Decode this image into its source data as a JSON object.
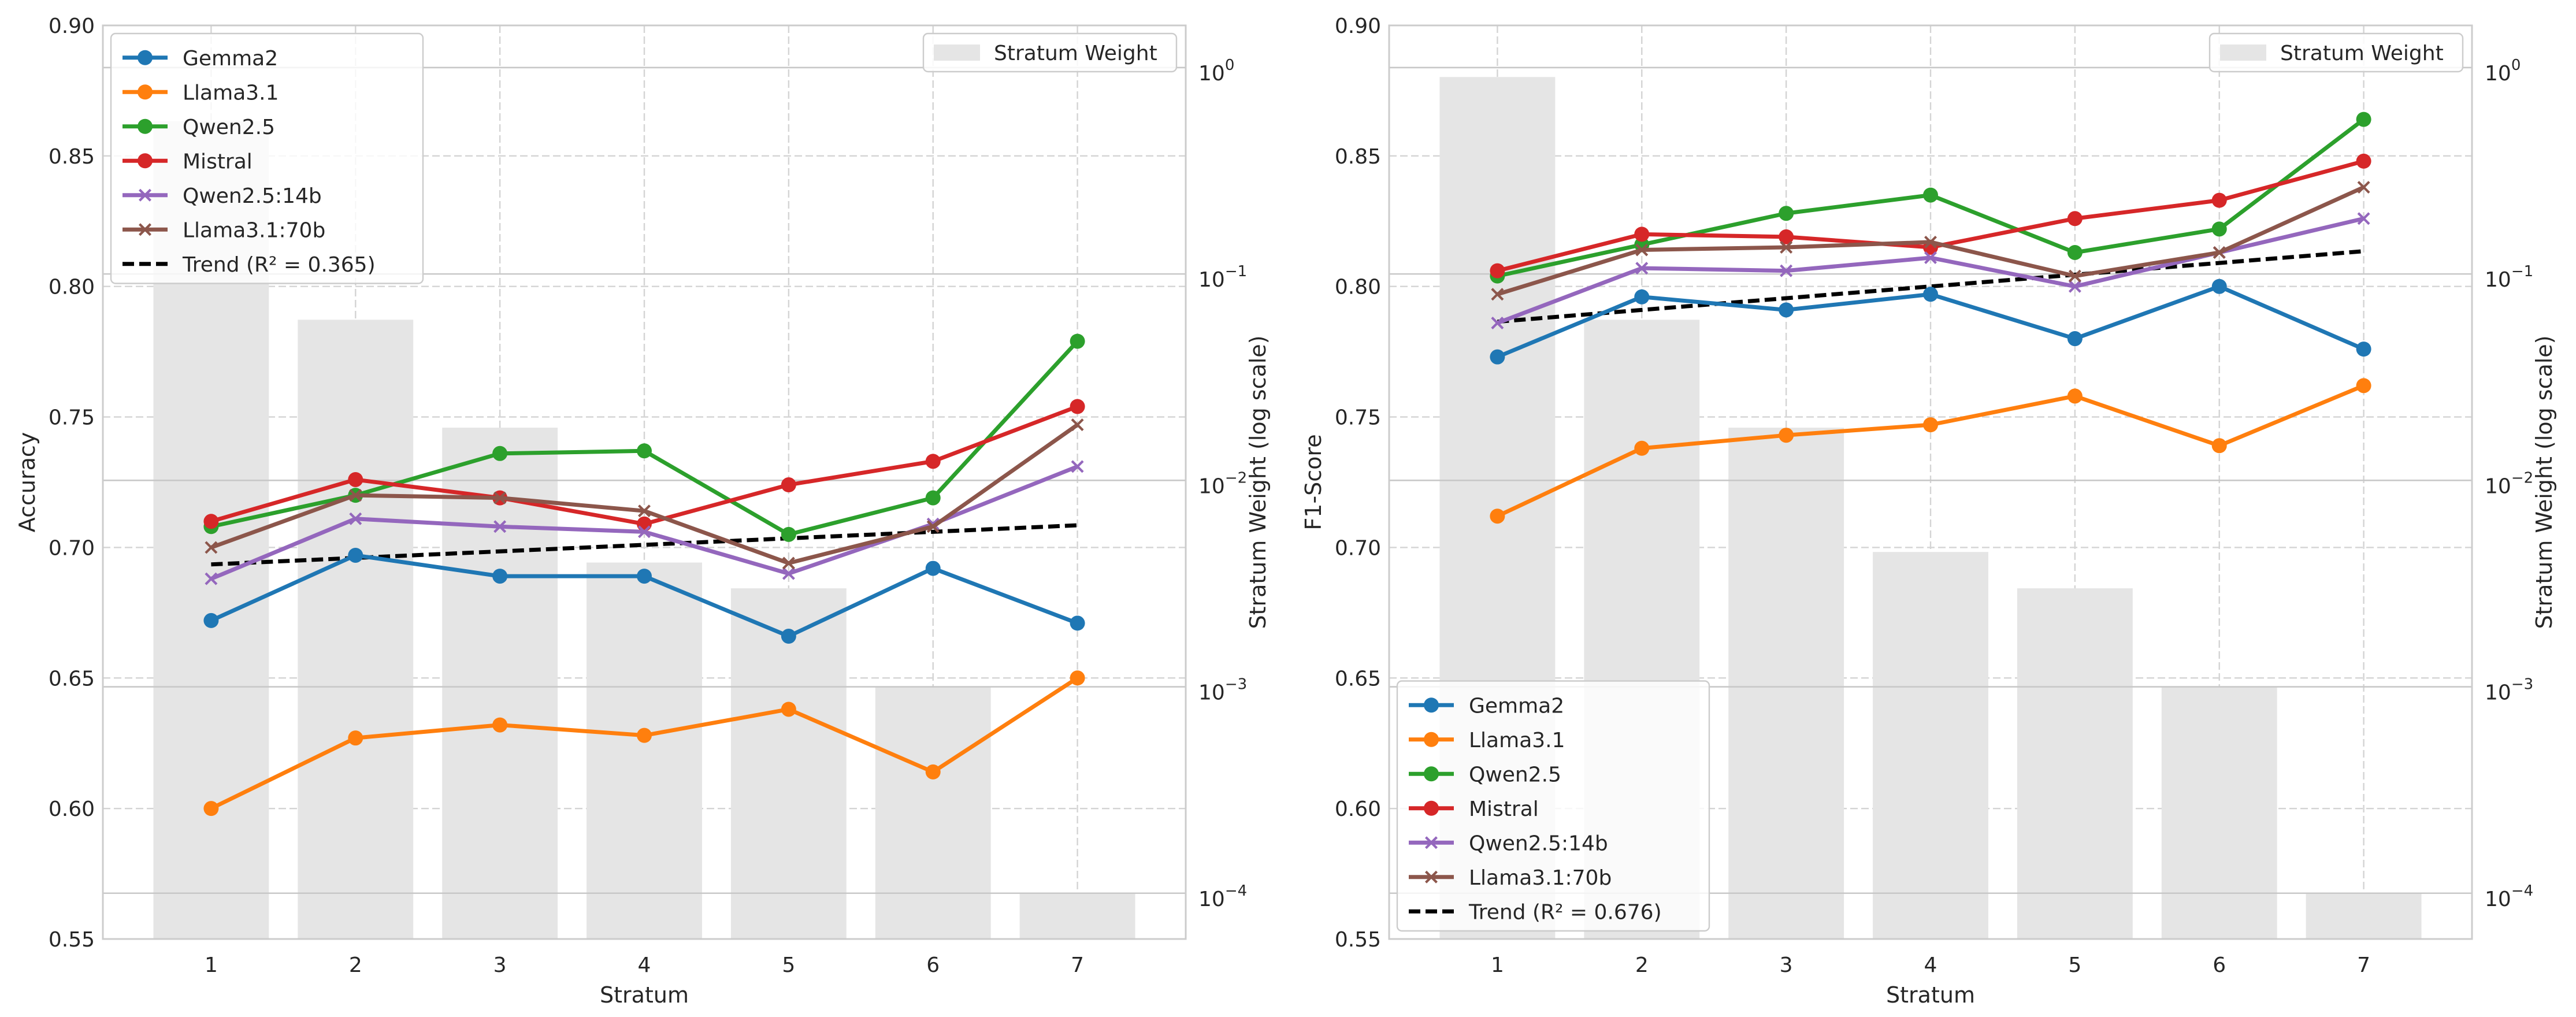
{
  "figure": {
    "panels": [
      {
        "ylabel": "Accuracy",
        "xlabel": "Stratum",
        "y2label": "Stratum Weight (log scale)",
        "bar_legend_label": "Stratum Weight",
        "legend_position": "upper-left",
        "yticks": [
          "0.55",
          "0.60",
          "0.65",
          "0.70",
          "0.75",
          "0.80",
          "0.85",
          "0.90"
        ],
        "xticks": [
          "1",
          "2",
          "3",
          "4",
          "5",
          "6",
          "7"
        ],
        "trend_label": "Trend (R² = 0.365)"
      },
      {
        "ylabel": "F1-Score",
        "xlabel": "Stratum",
        "y2label": "Stratum Weight (log scale)",
        "bar_legend_label": "Stratum Weight",
        "legend_position": "lower-left",
        "yticks": [
          "0.55",
          "0.60",
          "0.65",
          "0.70",
          "0.75",
          "0.80",
          "0.85",
          "0.90"
        ],
        "xticks": [
          "1",
          "2",
          "3",
          "4",
          "5",
          "6",
          "7"
        ],
        "trend_label": "Trend (R² = 0.676)"
      }
    ]
  },
  "chart_data": [
    {
      "type": "line",
      "x": [
        1,
        2,
        3,
        4,
        5,
        6,
        7
      ],
      "xlabel": "Stratum",
      "ylabel": "Accuracy",
      "ylim": [
        0.55,
        0.9
      ],
      "y2label": "Stratum Weight (log scale)",
      "y2_scale": "log",
      "y2lim": [
        6e-05,
        1.6
      ],
      "grid": true,
      "legend_position": "upper-left",
      "bars": {
        "name": "Stratum Weight",
        "color": "#e5e5e5",
        "values": [
          0.55,
          0.06,
          0.018,
          0.004,
          0.003,
          0.001,
          0.0001
        ]
      },
      "series": [
        {
          "name": "Gemma2",
          "color": "#1f77b4",
          "marker": "circle",
          "values": [
            0.672,
            0.697,
            0.689,
            0.689,
            0.666,
            0.692,
            0.671
          ]
        },
        {
          "name": "Llama3.1",
          "color": "#ff7f0e",
          "marker": "circle",
          "values": [
            0.6,
            0.627,
            0.632,
            0.628,
            0.638,
            0.614,
            0.65
          ]
        },
        {
          "name": "Qwen2.5",
          "color": "#2ca02c",
          "marker": "circle",
          "values": [
            0.708,
            0.72,
            0.736,
            0.737,
            0.705,
            0.719,
            0.779
          ]
        },
        {
          "name": "Mistral",
          "color": "#d62728",
          "marker": "circle",
          "values": [
            0.71,
            0.726,
            0.719,
            0.709,
            0.724,
            0.733,
            0.754
          ]
        },
        {
          "name": "Qwen2.5:14b",
          "color": "#9467bd",
          "marker": "x",
          "values": [
            0.688,
            0.711,
            0.708,
            0.706,
            0.69,
            0.709,
            0.731
          ]
        },
        {
          "name": "Llama3.1:70b",
          "color": "#8c564b",
          "marker": "x",
          "values": [
            0.7,
            0.72,
            0.719,
            0.714,
            0.694,
            0.708,
            0.747
          ]
        }
      ],
      "trend": {
        "name": "Trend (R² = 0.365)",
        "color": "#000000",
        "style": "dashed",
        "start": [
          1,
          0.6935
        ],
        "end": [
          7,
          0.7085
        ]
      }
    },
    {
      "type": "line",
      "x": [
        1,
        2,
        3,
        4,
        5,
        6,
        7
      ],
      "xlabel": "Stratum",
      "ylabel": "F1-Score",
      "ylim": [
        0.55,
        0.9
      ],
      "y2label": "Stratum Weight (log scale)",
      "y2_scale": "log",
      "y2lim": [
        6e-05,
        1.6
      ],
      "grid": true,
      "legend_position": "lower-left",
      "bars": {
        "name": "Stratum Weight",
        "color": "#e5e5e5",
        "values": [
          0.9,
          0.06,
          0.018,
          0.0045,
          0.003,
          0.001,
          0.0001
        ]
      },
      "series": [
        {
          "name": "Gemma2",
          "color": "#1f77b4",
          "marker": "circle",
          "values": [
            0.773,
            0.796,
            0.791,
            0.797,
            0.78,
            0.8,
            0.776
          ]
        },
        {
          "name": "Llama3.1",
          "color": "#ff7f0e",
          "marker": "circle",
          "values": [
            0.712,
            0.738,
            0.743,
            0.747,
            0.758,
            0.739,
            0.762
          ]
        },
        {
          "name": "Qwen2.5",
          "color": "#2ca02c",
          "marker": "circle",
          "values": [
            0.804,
            0.816,
            0.828,
            0.835,
            0.813,
            0.822,
            0.864
          ]
        },
        {
          "name": "Mistral",
          "color": "#d62728",
          "marker": "circle",
          "values": [
            0.806,
            0.82,
            0.819,
            0.815,
            0.826,
            0.833,
            0.848
          ]
        },
        {
          "name": "Qwen2.5:14b",
          "color": "#9467bd",
          "marker": "x",
          "values": [
            0.786,
            0.807,
            0.806,
            0.811,
            0.8,
            0.813,
            0.826
          ]
        },
        {
          "name": "Llama3.1:70b",
          "color": "#8c564b",
          "marker": "x",
          "values": [
            0.797,
            0.814,
            0.815,
            0.817,
            0.804,
            0.813,
            0.838
          ]
        }
      ],
      "trend": {
        "name": "Trend (R² = 0.676)",
        "color": "#000000",
        "style": "dashed",
        "start": [
          1,
          0.7865
        ],
        "end": [
          7,
          0.8135
        ]
      }
    }
  ]
}
